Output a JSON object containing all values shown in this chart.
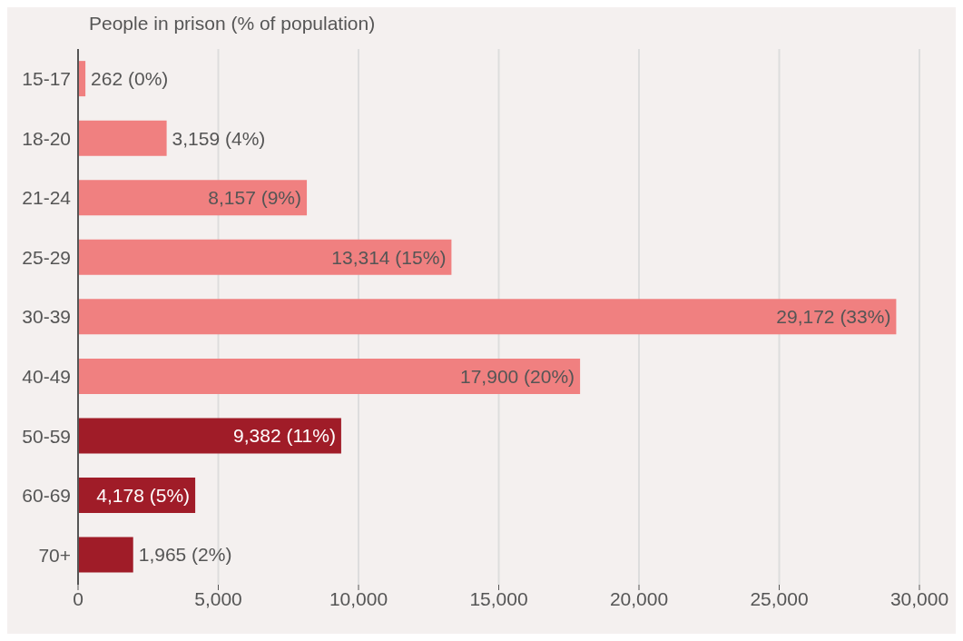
{
  "chart_data": {
    "type": "bar",
    "orientation": "horizontal",
    "title": "People in prison (% of population)",
    "categories": [
      "15-17",
      "18-20",
      "21-24",
      "25-29",
      "30-39",
      "40-49",
      "50-59",
      "60-69",
      "70+"
    ],
    "values": [
      262,
      3159,
      8157,
      13314,
      29172,
      17900,
      9382,
      4178,
      1965
    ],
    "colors": [
      "#f08080",
      "#f08080",
      "#f08080",
      "#f08080",
      "#f08080",
      "#f08080",
      "#a01c28",
      "#a01c28",
      "#a01c28"
    ],
    "value_labels": [
      "262 (0%)",
      "3,159 (4%)",
      "8,157 (9%)",
      "13,314 (15%)",
      "29,172 (33%)",
      "17,900 (20%)",
      "9,382 (11%)",
      "4,178 (5%)",
      "1,965 (2%)"
    ],
    "xlim": [
      0,
      30000
    ],
    "xticks": [
      0,
      {
        "value": 5000,
        "label": "5,000"
      },
      {
        "value": 10000,
        "label": "10,000"
      },
      {
        "value": 15000,
        "label": "15,000"
      },
      {
        "value": 20000,
        "label": "20,000"
      },
      {
        "value": 25000,
        "label": "25,000"
      },
      {
        "value": 30000,
        "label": "30,000"
      }
    ],
    "grid": "x",
    "legend": false
  }
}
